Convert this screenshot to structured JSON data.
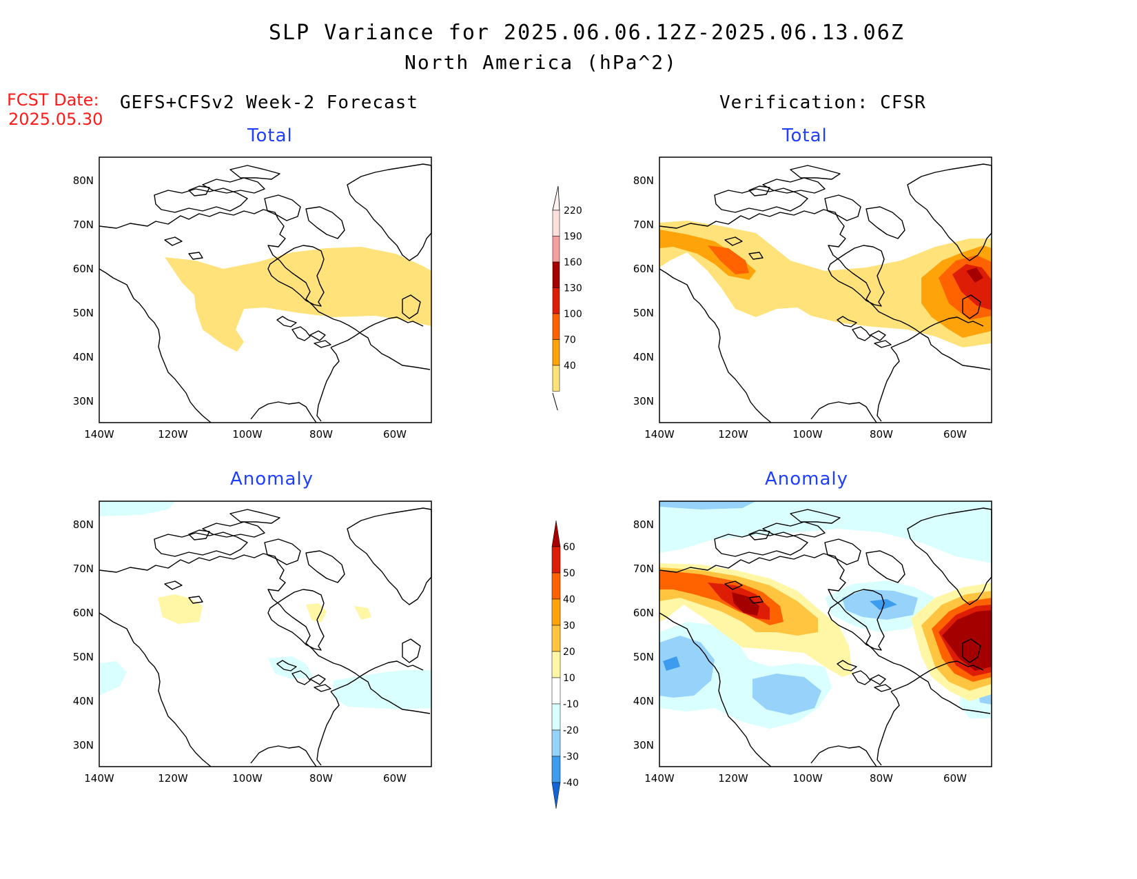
{
  "header": {
    "title": "SLP Variance for 2025.06.06.12Z-2025.06.13.06Z",
    "subtitle": "North America (hPa^2)",
    "fcst_label": "FCST Date:",
    "fcst_date": "2025.05.30",
    "left_column": "GEFS+CFSv2 Week-2 Forecast",
    "right_column": "Verification: CFSR"
  },
  "panels": {
    "forecast_total": "Total",
    "forecast_anomaly": "Anomaly",
    "verification_total": "Total",
    "verification_anomaly": "Anomaly"
  },
  "axes": {
    "lat_labels": [
      "80N",
      "70N",
      "60N",
      "50N",
      "40N",
      "30N"
    ],
    "lon_labels": [
      "140W",
      "120W",
      "100W",
      "80W",
      "60W"
    ]
  },
  "colorbars": {
    "total": {
      "labels": [
        "220",
        "190",
        "160",
        "130",
        "100",
        "70",
        "40"
      ],
      "colors": [
        "#fde0dd",
        "#f4a0a0",
        "#a50000",
        "#dd1d05",
        "#ff6300",
        "#ffa30b",
        "#ffe37a"
      ]
    },
    "anomaly": {
      "labels": [
        "60",
        "50",
        "40",
        "30",
        "20",
        "10",
        "-10",
        "-20",
        "-30",
        "-40"
      ],
      "colors": [
        "#a50000",
        "#dd1d05",
        "#ff6300",
        "#ffa30b",
        "#ffc440",
        "#fff6a6",
        "#ffffff",
        "#d9ffff",
        "#96d2fa",
        "#3d9cee",
        "#1463d2"
      ]
    }
  }
}
